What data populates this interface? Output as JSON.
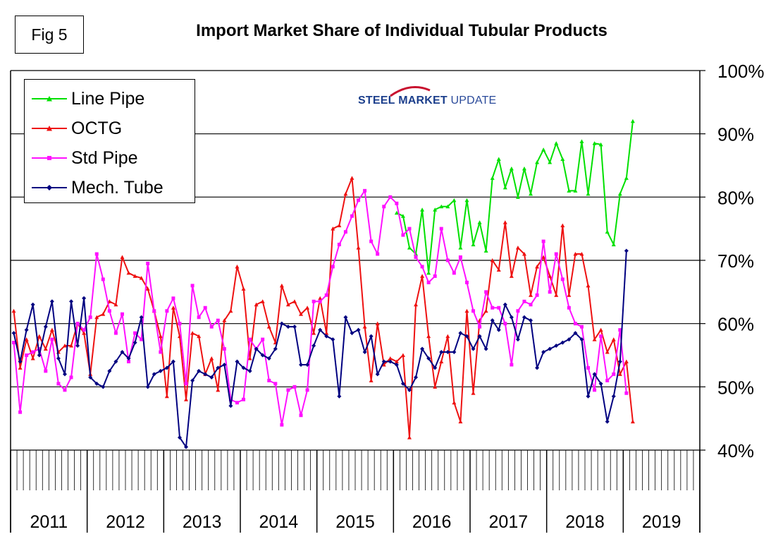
{
  "figure_label": "Fig 5",
  "logo": {
    "part1": "STEEL",
    "part2": "MARKET",
    "part3": "UPDATE"
  },
  "colors": {
    "line_pipe": "#00e000",
    "octg": "#ee1111",
    "std_pipe": "#ff11ff",
    "mech_tube": "#000080"
  },
  "chart_data": {
    "type": "line",
    "title": "Import Market Share of Individual Tubular Products",
    "xlabel": "",
    "ylabel": "",
    "ylim": [
      40,
      100
    ],
    "yticks": [
      "40%",
      "50%",
      "60%",
      "70%",
      "80%",
      "90%",
      "100%"
    ],
    "ytick_values": [
      40,
      50,
      60,
      70,
      80,
      90,
      100
    ],
    "year_labels": [
      "2011",
      "2012",
      "2013",
      "2014",
      "2015",
      "2016",
      "2017",
      "2018",
      "2019"
    ],
    "months_total": 108,
    "grid": true,
    "legend_position": "top-left",
    "series": [
      {
        "name": "Line Pipe",
        "color_key": "line_pipe",
        "marker": "triangle",
        "start_index": 60,
        "values": [
          77.5,
          77,
          72,
          71,
          78,
          68,
          78,
          78.5,
          78.5,
          79.5,
          72,
          79.5,
          72.5,
          76,
          71.5,
          83,
          86,
          81.5,
          84.5,
          80,
          84.5,
          80.5,
          85.5,
          87.5,
          85.5,
          88.5,
          86,
          81,
          81,
          88.8,
          80.5,
          88.5,
          88.3,
          74.5,
          72.5,
          80.5,
          83,
          92
        ]
      },
      {
        "name": "OCTG",
        "color_key": "octg",
        "marker": "triangle",
        "start_index": 0,
        "values": [
          62,
          53,
          57.5,
          54.5,
          58,
          56,
          59,
          55.5,
          56.5,
          56.5,
          60,
          58.5,
          52,
          61,
          61.5,
          63.5,
          63,
          70.5,
          68,
          67.5,
          67.2,
          65.5,
          62,
          58,
          48.5,
          62.5,
          58,
          48,
          58.5,
          58,
          52,
          54.5,
          49.5,
          60.5,
          62,
          69,
          65.5,
          54.5,
          63,
          63.5,
          59.5,
          57,
          66,
          63,
          63.5,
          61.5,
          62.5,
          58.5,
          64,
          58.5,
          75,
          75.5,
          80.5,
          83,
          72,
          59.5,
          51,
          60,
          53.5,
          54.5,
          54,
          55,
          42,
          63,
          67.5,
          58,
          50,
          54,
          58,
          47.5,
          44.5,
          62,
          49,
          60.5,
          62,
          70,
          68.5,
          76,
          67.5,
          72,
          71,
          64.5,
          69,
          70.5,
          67.5,
          64.5,
          75.5,
          64.5,
          71,
          71,
          66,
          57.5,
          59,
          55.5,
          57.5,
          52,
          54,
          44.5
        ]
      },
      {
        "name": "Std Pipe",
        "color_key": "std_pipe",
        "marker": "square",
        "start_index": 0,
        "values": [
          57,
          46,
          55,
          55.5,
          56,
          52.5,
          57.5,
          50.5,
          49.5,
          51.5,
          60,
          59,
          61,
          71,
          67,
          62,
          58.5,
          61.5,
          54,
          58.5,
          57.5,
          69.5,
          62,
          55.5,
          62,
          64,
          60,
          50.5,
          66,
          61,
          62.5,
          59.5,
          60.5,
          56,
          48,
          47.5,
          48,
          57.5,
          56,
          57.5,
          51,
          50.5,
          44,
          49.5,
          50,
          45.5,
          49.5,
          63.5,
          63.5,
          64.5,
          69,
          72.5,
          74.5,
          77,
          79.5,
          81,
          73,
          71,
          78.5,
          80,
          79,
          74,
          75,
          70.5,
          69,
          66.5,
          67.5,
          75,
          70,
          68,
          70.5,
          66.5,
          62,
          59.5,
          65,
          62.5,
          62.5,
          60,
          53.5,
          62,
          63.5,
          63,
          64.5,
          73,
          65,
          71,
          67,
          62.5,
          60,
          59.5,
          53,
          49.5,
          58,
          51,
          52,
          59,
          49
        ]
      },
      {
        "name": "Mech. Tube",
        "color_key": "mech_tube",
        "marker": "diamond",
        "start_index": 0,
        "values": [
          58.5,
          54,
          59,
          63,
          55,
          59.5,
          63.5,
          54.5,
          52,
          63.5,
          56.5,
          64,
          51.5,
          50.5,
          50,
          52.5,
          54,
          55.5,
          54.5,
          57,
          61,
          50,
          52,
          52.5,
          53,
          54,
          42,
          40.5,
          51,
          52.5,
          52,
          51.5,
          53,
          53.5,
          47,
          54,
          53,
          52.5,
          56,
          55,
          54.5,
          56,
          60,
          59.5,
          59.5,
          53.5,
          53.5,
          56.5,
          59,
          58,
          57.5,
          48.5,
          61,
          58.5,
          59,
          55.5,
          58,
          52,
          54,
          54,
          53.5,
          50.5,
          49.5,
          51.5,
          56,
          54.5,
          53,
          55.5,
          55.5,
          55.5,
          58.5,
          58,
          56,
          58,
          56,
          60.5,
          59,
          63,
          61,
          57.5,
          61,
          60.5,
          53,
          55.5,
          56,
          56.5,
          57,
          57.5,
          58.5,
          57.5,
          48.5,
          52,
          50.5,
          44.5,
          48.5,
          54,
          71.5
        ]
      }
    ]
  }
}
